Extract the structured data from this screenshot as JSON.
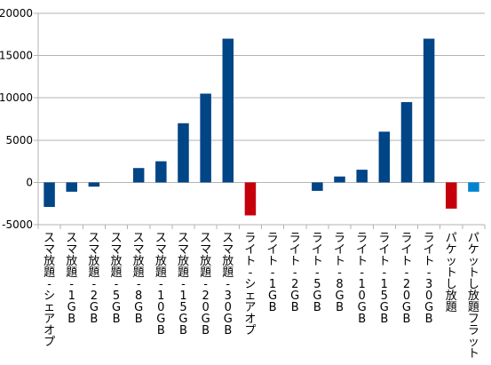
{
  "chart_data": {
    "type": "bar",
    "title": "",
    "xlabel": "",
    "ylabel": "",
    "ylim": [
      -5000,
      20000
    ],
    "yticks": [
      -5000,
      0,
      5000,
      10000,
      15000,
      20000
    ],
    "ytick_labels": [
      "-5000",
      "0",
      "5000",
      "10000",
      "15000",
      "20000"
    ],
    "grid": "horizontal",
    "legend": "none",
    "categories": [
      "スマ放題 - シェアオプ",
      "スマ放題 - 1GB",
      "スマ放題 - 2GB",
      "スマ放題 - 5GB",
      "スマ放題 - 8GB",
      "スマ放題 - 10GB",
      "スマ放題 - 15GB",
      "スマ放題 - 20GB",
      "スマ放題 - 30GB",
      "ライト - シェアオプ",
      "ライト - 1GB",
      "ライト - 2GB",
      "ライト - 5GB",
      "ライト - 8GB",
      "ライト - 10GB",
      "ライト - 15GB",
      "ライト - 20GB",
      "ライト - 30GB",
      "パケットし放題",
      "パケットし放題フラット"
    ],
    "values": [
      -2900,
      -1100,
      -500,
      0,
      1700,
      2500,
      7000,
      10500,
      17000,
      -3900,
      0,
      0,
      -1000,
      700,
      1500,
      6000,
      9500,
      17000,
      -3100,
      -1100
    ],
    "colors": [
      "#004586",
      "#004586",
      "#004586",
      "#004586",
      "#004586",
      "#004586",
      "#004586",
      "#004586",
      "#004586",
      "#c5000b",
      "#004586",
      "#004586",
      "#004586",
      "#004586",
      "#004586",
      "#004586",
      "#004586",
      "#004586",
      "#c5000b",
      "#0084d1"
    ]
  }
}
